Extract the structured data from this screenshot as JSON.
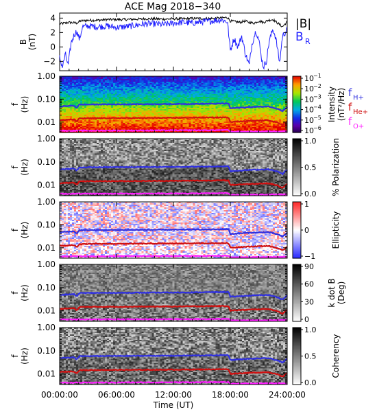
{
  "title": "ACE Mag 2018−340",
  "time_axis": {
    "label": "Time (UT)",
    "ticks": [
      {
        "hours": 0,
        "label": "00:00:00"
      },
      {
        "hours": 6,
        "label": "06:00:00"
      },
      {
        "hours": 12,
        "label": "12:00:00"
      },
      {
        "hours": 18,
        "label": "18:00:00"
      },
      {
        "hours": 24,
        "label": "24:00:00"
      }
    ],
    "range_hours": [
      0,
      24
    ]
  },
  "freq_axis": {
    "scale": "log",
    "range_hz": [
      0.0035,
      1.0
    ],
    "ticks": [
      {
        "value": 1.0,
        "label": "1.00"
      },
      {
        "value": 0.1,
        "label": "0.10"
      },
      {
        "value": 0.01,
        "label": "0.01"
      }
    ]
  },
  "field_panel": {
    "ylabel_main": "B",
    "ylabel_unit": "(nT)",
    "ylim": [
      -3.3,
      4.7
    ],
    "yticks": [
      {
        "value": 4,
        "label": "4"
      },
      {
        "value": 2,
        "label": "2"
      },
      {
        "value": 0,
        "label": "0"
      },
      {
        "value": -2,
        "label": "−2"
      }
    ],
    "legend": [
      {
        "label": "|B|",
        "color": "#000000"
      },
      {
        "label": "B",
        "sub": "R",
        "color": "#2020ff"
      }
    ]
  },
  "panels": [
    {
      "key": "intensity",
      "ylabel_main": "f",
      "ylabel_unit": "(Hz)",
      "colorbar": {
        "palette": "rainbow",
        "scale": "log",
        "ticks": [
          {
            "label": "10",
            "sup": "−1"
          },
          {
            "label": "10",
            "sup": "−2"
          },
          {
            "label": "10",
            "sup": "−3"
          },
          {
            "label": "10",
            "sup": "−4"
          },
          {
            "label": "10",
            "sup": "−5"
          },
          {
            "label": "10",
            "sup": "−6"
          }
        ],
        "title_line1": "Intensity",
        "title_line2": "(nT²/Hz)"
      }
    },
    {
      "key": "polarization",
      "ylabel_main": "f",
      "ylabel_unit": "(Hz)",
      "colorbar": {
        "palette": "gray",
        "ticks": [
          {
            "label": "1.0"
          },
          {
            "label": "0.5"
          },
          {
            "label": "0.0"
          }
        ],
        "title_line1": "% Polarization",
        "title_line2": ""
      }
    },
    {
      "key": "ellipticity",
      "ylabel_main": "f",
      "ylabel_unit": "(Hz)",
      "colorbar": {
        "palette": "bwr",
        "ticks": [
          {
            "label": "1"
          },
          {
            "label": "0"
          },
          {
            "label": "−1"
          }
        ],
        "title_line1": "Ellipticity",
        "title_line2": ""
      }
    },
    {
      "key": "kdotb",
      "ylabel_main": "f",
      "ylabel_unit": "(Hz)",
      "colorbar": {
        "palette": "gray",
        "ticks": [
          {
            "label": "90"
          },
          {
            "label": "60"
          },
          {
            "label": "30"
          },
          {
            "label": "0"
          }
        ],
        "title_line1": "k dot B",
        "title_line2": "(Deg)"
      }
    },
    {
      "key": "coherency",
      "ylabel_main": "f",
      "ylabel_unit": "(Hz)",
      "colorbar": {
        "palette": "gray",
        "ticks": [
          {
            "label": "1.0"
          },
          {
            "label": "0.5"
          },
          {
            "label": "0.0"
          }
        ],
        "title_line1": "Coherency",
        "title_line2": ""
      }
    }
  ],
  "gyro_legend": [
    {
      "label": "f",
      "sub": "H+",
      "color": "#3030e0"
    },
    {
      "label": "f",
      "sub": "He+",
      "color": "#d01010"
    },
    {
      "label": "f",
      "sub": "O+",
      "color": "#ff20ff"
    }
  ],
  "chart_data": {
    "type": "line",
    "title": "ACE Mag 2018−340",
    "xlabel": "Time (UT)",
    "x_range_hours": [
      0,
      24
    ],
    "field_series": [
      {
        "name": "|B|",
        "color": "#000000",
        "points_hours_nT": [
          [
            0.0,
            3.2
          ],
          [
            0.5,
            3.3
          ],
          [
            1.0,
            3.4
          ],
          [
            1.8,
            3.3
          ],
          [
            2.2,
            3.6
          ],
          [
            3.0,
            3.7
          ],
          [
            4.0,
            3.7
          ],
          [
            5.0,
            3.8
          ],
          [
            6.0,
            3.8
          ],
          [
            7.0,
            3.8
          ],
          [
            8.0,
            3.85
          ],
          [
            9.0,
            3.9
          ],
          [
            10.0,
            3.9
          ],
          [
            11.0,
            3.85
          ],
          [
            12.0,
            3.9
          ],
          [
            13.0,
            3.9
          ],
          [
            14.0,
            3.95
          ],
          [
            15.0,
            3.95
          ],
          [
            16.0,
            3.95
          ],
          [
            17.0,
            4.0
          ],
          [
            17.7,
            4.1
          ],
          [
            18.0,
            3.6
          ],
          [
            18.5,
            3.5
          ],
          [
            19.0,
            3.4
          ],
          [
            19.5,
            3.6
          ],
          [
            20.0,
            3.4
          ],
          [
            20.5,
            3.3
          ],
          [
            21.0,
            3.6
          ],
          [
            21.5,
            3.4
          ],
          [
            22.0,
            3.7
          ],
          [
            22.5,
            3.8
          ],
          [
            23.0,
            3.3
          ],
          [
            23.5,
            2.8
          ],
          [
            24.0,
            3.5
          ]
        ]
      },
      {
        "name": "B_R",
        "color": "#2020ff",
        "points_hours_nT": [
          [
            0.0,
            -1.5
          ],
          [
            0.3,
            -2.8
          ],
          [
            0.6,
            -1.0
          ],
          [
            0.9,
            -2.6
          ],
          [
            1.2,
            0.5
          ],
          [
            1.5,
            1.6
          ],
          [
            1.8,
            2.2
          ],
          [
            2.1,
            1.0
          ],
          [
            2.4,
            2.8
          ],
          [
            3.0,
            2.9
          ],
          [
            4.0,
            2.8
          ],
          [
            5.0,
            2.9
          ],
          [
            6.0,
            2.7
          ],
          [
            7.0,
            2.8
          ],
          [
            8.0,
            3.0
          ],
          [
            9.0,
            3.2
          ],
          [
            10.0,
            3.2
          ],
          [
            11.0,
            3.1
          ],
          [
            12.0,
            3.3
          ],
          [
            13.0,
            3.4
          ],
          [
            14.0,
            3.3
          ],
          [
            15.0,
            3.5
          ],
          [
            16.0,
            3.6
          ],
          [
            17.0,
            3.8
          ],
          [
            17.7,
            3.5
          ],
          [
            18.0,
            -0.5
          ],
          [
            18.4,
            1.2
          ],
          [
            18.8,
            0.0
          ],
          [
            19.2,
            1.5
          ],
          [
            19.6,
            -1.0
          ],
          [
            20.0,
            -2.5
          ],
          [
            20.3,
            0.5
          ],
          [
            20.7,
            2.3
          ],
          [
            21.0,
            1.0
          ],
          [
            21.3,
            -1.6
          ],
          [
            21.5,
            -2.8
          ],
          [
            21.8,
            -2.0
          ],
          [
            22.1,
            0.8
          ],
          [
            22.5,
            2.5
          ],
          [
            22.8,
            1.2
          ],
          [
            23.2,
            -2.2
          ],
          [
            23.5,
            1.5
          ],
          [
            24.0,
            2.4
          ]
        ]
      }
    ],
    "gyrofrequency_lines_hz": [
      {
        "name": "f_H+",
        "color": "#3030e0",
        "points_hours_hz": [
          [
            0.0,
            0.048
          ],
          [
            0.8,
            0.05
          ],
          [
            1.5,
            0.052
          ],
          [
            1.8,
            0.042
          ],
          [
            2.1,
            0.058
          ],
          [
            4.0,
            0.059
          ],
          [
            8.0,
            0.06
          ],
          [
            12.0,
            0.061
          ],
          [
            16.0,
            0.063
          ],
          [
            17.8,
            0.065
          ],
          [
            18.0,
            0.04
          ],
          [
            20.0,
            0.045
          ],
          [
            22.0,
            0.048
          ],
          [
            23.0,
            0.038
          ],
          [
            23.5,
            0.03
          ],
          [
            24.0,
            0.045
          ]
        ]
      },
      {
        "name": "f_He+",
        "color": "#d01010",
        "points_hours_hz": [
          [
            0.0,
            0.012
          ],
          [
            0.8,
            0.0125
          ],
          [
            1.5,
            0.013
          ],
          [
            1.8,
            0.0105
          ],
          [
            2.1,
            0.0145
          ],
          [
            4.0,
            0.0148
          ],
          [
            8.0,
            0.015
          ],
          [
            12.0,
            0.0153
          ],
          [
            16.0,
            0.0158
          ],
          [
            17.8,
            0.016
          ],
          [
            18.0,
            0.0102
          ],
          [
            20.0,
            0.0112
          ],
          [
            22.0,
            0.012
          ],
          [
            23.0,
            0.0095
          ],
          [
            23.5,
            0.0075
          ],
          [
            24.0,
            0.011
          ]
        ]
      },
      {
        "name": "f_O+",
        "color": "#ff20ff",
        "points_hours_hz": [
          [
            0.0,
            0.0042
          ],
          [
            8.0,
            0.0043
          ],
          [
            16.0,
            0.0044
          ],
          [
            17.8,
            0.0045
          ],
          [
            18.0,
            0.0038
          ],
          [
            24.0,
            0.004
          ]
        ]
      }
    ]
  }
}
